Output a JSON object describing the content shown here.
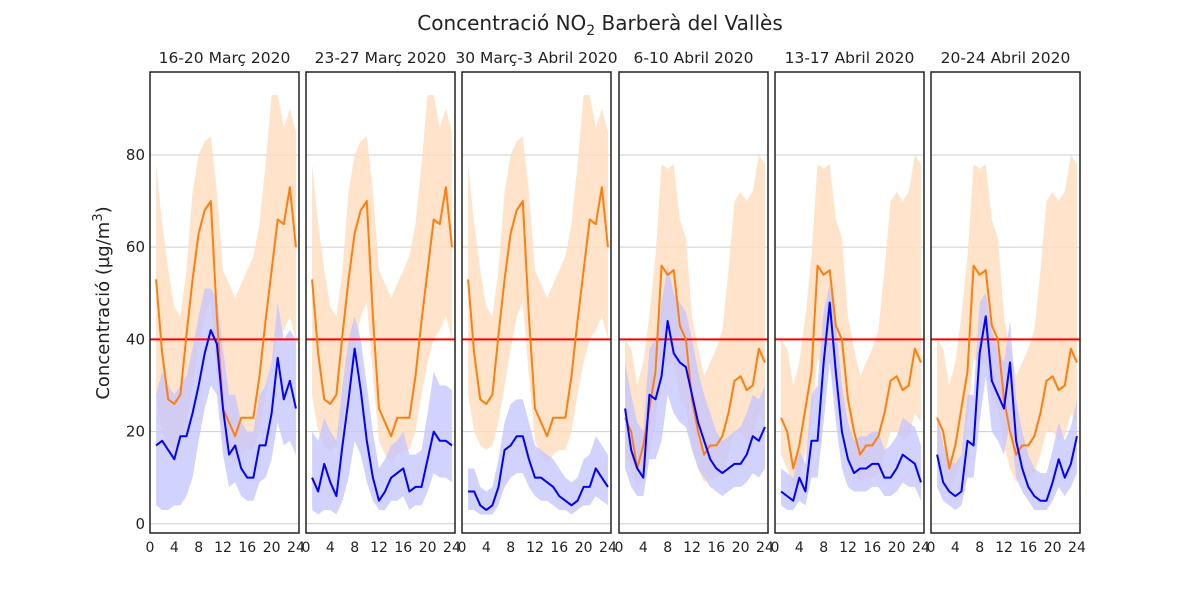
{
  "figure": {
    "title": "Concentració NO",
    "title_sub": "2",
    "title_rest": " Barberà del Vallès",
    "ylabel": "Concentració (µg/m",
    "ylabel_sup": "3",
    "ylabel_end": ")"
  },
  "chart_data": {
    "type": "line",
    "ylim": [
      -2,
      98
    ],
    "xlim": [
      0,
      24.5
    ],
    "yticks": [
      0,
      20,
      40,
      60,
      80
    ],
    "xticks": [
      0,
      4,
      8,
      12,
      16,
      20,
      24
    ],
    "grid": "horizontal",
    "limit_value": 40,
    "colors": {
      "limit": "#ff0000",
      "series_2019": "#ff7f0e",
      "band_2019": "#ffdcbe",
      "series_2020": "#0000ff",
      "band_2020": "#c3c3ff"
    },
    "panels": [
      {
        "title": "16-20 Març 2020",
        "hours": [
          1,
          2,
          3,
          4,
          5,
          6,
          7,
          8,
          9,
          10,
          11,
          12,
          13,
          14,
          15,
          16,
          17,
          18,
          19,
          20,
          21,
          22,
          23,
          24
        ],
        "orange": [
          53,
          37,
          27,
          26,
          28,
          41,
          53,
          63,
          68,
          70,
          45,
          25,
          22,
          19,
          23,
          23,
          23,
          32,
          44,
          55,
          66,
          65,
          73,
          60
        ],
        "orange_lo": [
          28,
          20,
          17,
          16,
          17,
          22,
          30,
          38,
          45,
          48,
          32,
          18,
          15,
          13,
          15,
          16,
          16,
          20,
          28,
          35,
          40,
          42,
          45,
          40
        ],
        "orange_hi": [
          78,
          65,
          55,
          47,
          45,
          55,
          72,
          80,
          83,
          84,
          72,
          55,
          52,
          49,
          52,
          55,
          58,
          65,
          78,
          93,
          93,
          86,
          90,
          85
        ],
        "blue": [
          17,
          18,
          16,
          14,
          19,
          19,
          24,
          30,
          37,
          42,
          39,
          25,
          15,
          17,
          12,
          10,
          10,
          17,
          17,
          24,
          36,
          27,
          31,
          25
        ],
        "blue_lo": [
          4,
          3,
          3,
          4,
          4,
          6,
          10,
          18,
          25,
          30,
          28,
          15,
          8,
          9,
          6,
          5,
          5,
          9,
          10,
          14,
          22,
          17,
          18,
          15
        ],
        "blue_hi": [
          28,
          33,
          30,
          28,
          30,
          32,
          38,
          45,
          51,
          51,
          49,
          38,
          28,
          28,
          22,
          20,
          20,
          28,
          30,
          35,
          48,
          40,
          42,
          40
        ]
      },
      {
        "title": "23-27 Març 2020",
        "hours": [
          1,
          2,
          3,
          4,
          5,
          6,
          7,
          8,
          9,
          10,
          11,
          12,
          13,
          14,
          15,
          16,
          17,
          18,
          19,
          20,
          21,
          22,
          23,
          24
        ],
        "orange": [
          53,
          37,
          27,
          26,
          28,
          41,
          53,
          63,
          68,
          70,
          45,
          25,
          22,
          19,
          23,
          23,
          23,
          32,
          44,
          55,
          66,
          65,
          73,
          60
        ],
        "orange_lo": [
          28,
          20,
          17,
          16,
          17,
          22,
          30,
          38,
          45,
          48,
          32,
          18,
          15,
          13,
          15,
          16,
          16,
          20,
          28,
          35,
          40,
          42,
          45,
          40
        ],
        "orange_hi": [
          78,
          65,
          55,
          47,
          45,
          55,
          72,
          80,
          83,
          84,
          72,
          55,
          52,
          49,
          52,
          55,
          58,
          65,
          78,
          93,
          93,
          86,
          90,
          85
        ],
        "blue": [
          10,
          7,
          13,
          9,
          6,
          17,
          27,
          38,
          29,
          18,
          10,
          5,
          7,
          10,
          11,
          12,
          7,
          8,
          8,
          14,
          20,
          18,
          18,
          17
        ],
        "blue_lo": [
          3,
          2,
          3,
          3,
          2,
          5,
          10,
          18,
          15,
          9,
          5,
          3,
          3,
          5,
          5,
          6,
          3,
          4,
          4,
          7,
          11,
          10,
          10,
          9
        ],
        "blue_hi": [
          20,
          18,
          23,
          20,
          18,
          30,
          40,
          45,
          40,
          30,
          20,
          12,
          14,
          17,
          18,
          20,
          15,
          15,
          16,
          24,
          33,
          30,
          30,
          29
        ]
      },
      {
        "title": "30 Març-3 Abril 2020",
        "hours": [
          1,
          2,
          3,
          4,
          5,
          6,
          7,
          8,
          9,
          10,
          11,
          12,
          13,
          14,
          15,
          16,
          17,
          18,
          19,
          20,
          21,
          22,
          23,
          24
        ],
        "orange": [
          53,
          37,
          27,
          26,
          28,
          41,
          53,
          63,
          68,
          70,
          45,
          25,
          22,
          19,
          23,
          23,
          23,
          32,
          44,
          55,
          66,
          65,
          73,
          60
        ],
        "orange_lo": [
          28,
          20,
          17,
          16,
          17,
          22,
          30,
          38,
          45,
          48,
          32,
          18,
          15,
          13,
          15,
          16,
          16,
          20,
          28,
          35,
          40,
          42,
          45,
          40
        ],
        "orange_hi": [
          78,
          65,
          55,
          47,
          45,
          55,
          72,
          80,
          83,
          84,
          72,
          55,
          52,
          49,
          52,
          55,
          58,
          65,
          78,
          93,
          93,
          86,
          90,
          85
        ],
        "blue": [
          7,
          7,
          4,
          3,
          4,
          8,
          16,
          17,
          19,
          19,
          14,
          10,
          10,
          9,
          8,
          6,
          5,
          4,
          5,
          8,
          8,
          12,
          10,
          8
        ],
        "blue_lo": [
          3,
          3,
          2,
          2,
          2,
          4,
          8,
          10,
          11,
          11,
          8,
          6,
          5,
          5,
          4,
          3,
          3,
          2,
          3,
          4,
          4,
          6,
          5,
          4
        ],
        "blue_hi": [
          12,
          12,
          8,
          7,
          8,
          14,
          22,
          26,
          27,
          27,
          22,
          17,
          16,
          15,
          14,
          12,
          10,
          9,
          10,
          14,
          15,
          19,
          17,
          15
        ]
      },
      {
        "title": "6-10 Abril 2020",
        "hours": [
          1,
          2,
          3,
          4,
          5,
          6,
          7,
          8,
          9,
          10,
          11,
          12,
          13,
          14,
          15,
          16,
          17,
          18,
          19,
          20,
          21,
          22,
          23,
          24
        ],
        "orange": [
          23,
          20,
          12,
          17,
          25,
          33,
          56,
          54,
          55,
          43,
          40,
          27,
          20,
          15,
          17,
          17,
          19,
          24,
          31,
          32,
          29,
          30,
          38,
          35
        ],
        "orange_lo": [
          15,
          12,
          8,
          10,
          15,
          22,
          36,
          34,
          35,
          27,
          25,
          17,
          12,
          9,
          10,
          10,
          11,
          15,
          20,
          20,
          18,
          19,
          24,
          22
        ],
        "orange_hi": [
          40,
          38,
          30,
          35,
          45,
          58,
          78,
          77,
          78,
          66,
          62,
          45,
          38,
          32,
          35,
          38,
          42,
          55,
          70,
          72,
          70,
          72,
          80,
          78
        ],
        "blue": [
          25,
          16,
          12,
          10,
          28,
          27,
          32,
          44,
          37,
          35,
          34,
          28,
          22,
          18,
          14,
          12,
          11,
          12,
          13,
          13,
          15,
          19,
          18,
          21
        ],
        "blue_lo": [
          12,
          8,
          6,
          6,
          14,
          14,
          18,
          28,
          24,
          22,
          21,
          16,
          12,
          10,
          8,
          7,
          6,
          7,
          8,
          8,
          9,
          11,
          10,
          12
        ],
        "blue_hi": [
          35,
          28,
          22,
          20,
          38,
          40,
          48,
          56,
          50,
          48,
          46,
          40,
          33,
          28,
          24,
          20,
          18,
          19,
          20,
          21,
          24,
          28,
          27,
          30
        ]
      },
      {
        "title": "13-17 Abril 2020",
        "hours": [
          1,
          2,
          3,
          4,
          5,
          6,
          7,
          8,
          9,
          10,
          11,
          12,
          13,
          14,
          15,
          16,
          17,
          18,
          19,
          20,
          21,
          22,
          23,
          24
        ],
        "orange": [
          23,
          20,
          12,
          17,
          25,
          33,
          56,
          54,
          55,
          43,
          40,
          27,
          20,
          15,
          17,
          17,
          19,
          24,
          31,
          32,
          29,
          30,
          38,
          35
        ],
        "orange_lo": [
          15,
          12,
          8,
          10,
          15,
          22,
          36,
          34,
          35,
          27,
          25,
          17,
          12,
          9,
          10,
          10,
          11,
          15,
          20,
          20,
          18,
          19,
          24,
          22
        ],
        "orange_hi": [
          40,
          38,
          30,
          35,
          45,
          58,
          78,
          77,
          78,
          66,
          62,
          45,
          38,
          32,
          35,
          38,
          42,
          55,
          70,
          72,
          70,
          72,
          80,
          78
        ],
        "blue": [
          7,
          6,
          5,
          10,
          7,
          18,
          18,
          35,
          48,
          33,
          20,
          14,
          11,
          12,
          12,
          13,
          13,
          10,
          10,
          12,
          15,
          14,
          13,
          9
        ],
        "blue_lo": [
          4,
          3,
          3,
          5,
          4,
          10,
          10,
          22,
          35,
          22,
          12,
          8,
          7,
          7,
          7,
          8,
          8,
          6,
          6,
          7,
          9,
          8,
          8,
          5
        ],
        "blue_hi": [
          12,
          11,
          10,
          16,
          13,
          28,
          30,
          46,
          52,
          44,
          30,
          22,
          18,
          19,
          19,
          20,
          20,
          16,
          17,
          19,
          23,
          22,
          21,
          17
        ]
      },
      {
        "title": "20-24 Abril 2020",
        "hours": [
          1,
          2,
          3,
          4,
          5,
          6,
          7,
          8,
          9,
          10,
          11,
          12,
          13,
          14,
          15,
          16,
          17,
          18,
          19,
          20,
          21,
          22,
          23,
          24
        ],
        "orange": [
          23,
          20,
          12,
          17,
          25,
          33,
          56,
          54,
          55,
          43,
          40,
          27,
          20,
          15,
          17,
          17,
          19,
          24,
          31,
          32,
          29,
          30,
          38,
          35
        ],
        "orange_lo": [
          15,
          12,
          8,
          10,
          15,
          22,
          36,
          34,
          35,
          27,
          25,
          17,
          12,
          9,
          10,
          10,
          11,
          15,
          20,
          20,
          18,
          19,
          24,
          22
        ],
        "orange_hi": [
          40,
          38,
          30,
          35,
          45,
          58,
          78,
          77,
          78,
          66,
          62,
          45,
          38,
          32,
          35,
          38,
          42,
          55,
          70,
          72,
          70,
          72,
          80,
          78
        ],
        "blue": [
          15,
          9,
          7,
          6,
          7,
          18,
          17,
          37,
          45,
          31,
          28,
          25,
          35,
          18,
          12,
          8,
          6,
          5,
          5,
          9,
          14,
          10,
          13,
          19
        ],
        "blue_lo": [
          8,
          5,
          4,
          3,
          4,
          10,
          10,
          22,
          32,
          20,
          18,
          15,
          22,
          10,
          7,
          5,
          3,
          3,
          3,
          5,
          8,
          6,
          8,
          11
        ],
        "blue_hi": [
          24,
          17,
          14,
          13,
          15,
          28,
          28,
          48,
          50,
          42,
          38,
          35,
          44,
          27,
          20,
          15,
          12,
          11,
          11,
          16,
          22,
          18,
          21,
          27
        ]
      }
    ]
  }
}
